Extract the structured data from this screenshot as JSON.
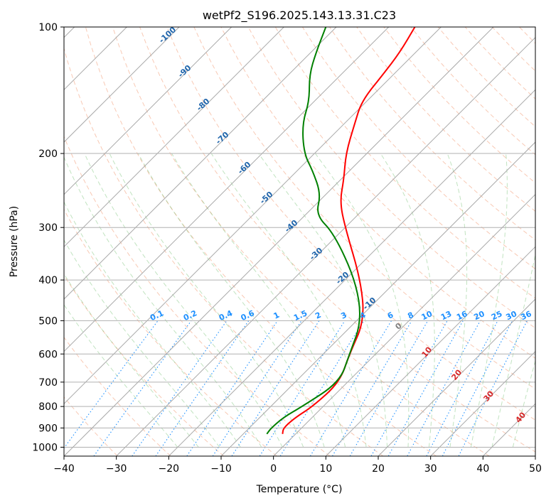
{
  "chart_data": {
    "type": "skew-t",
    "title": "wetPf2_S196.2025.143.13.31.C23",
    "xlabel": "Temperature (°C)",
    "ylabel": "Pressure (hPa)",
    "xlim": [
      -40,
      50
    ],
    "ylim": [
      1050,
      100
    ],
    "x_ticks": [
      "−40",
      "−30",
      "−20",
      "−10",
      "0",
      "10",
      "20",
      "30",
      "40",
      "50"
    ],
    "y_ticks": [
      {
        "p": 100,
        "label": "100"
      },
      {
        "p": 200,
        "label": "200"
      },
      {
        "p": 300,
        "label": "300"
      },
      {
        "p": 400,
        "label": "400"
      },
      {
        "p": 500,
        "label": "500"
      },
      {
        "p": 600,
        "label": "600"
      },
      {
        "p": 700,
        "label": "700"
      },
      {
        "p": 800,
        "label": "800"
      },
      {
        "p": 900,
        "label": "900"
      },
      {
        "p": 1000,
        "label": "1000"
      }
    ],
    "grid": true,
    "dry_adiabat_labels": [
      "-100",
      "-90",
      "-80",
      "-70",
      "-60",
      "-50",
      "-40",
      "-30",
      "-20",
      "-10",
      "0"
    ],
    "mixing_ratio_labels": [
      "0.1",
      "0.2",
      "0.4",
      "0.6",
      "1",
      "1.5",
      "2",
      "3",
      "4",
      "6",
      "8",
      "10",
      "13",
      "16",
      "20",
      "25",
      "30",
      "36"
    ],
    "moist_adiabat_labels": [
      "10",
      "20",
      "30",
      "40"
    ],
    "series": [
      {
        "role": "temperature",
        "color": "#ff0000",
        "points": [
          [
            930,
            -2.5
          ],
          [
            900,
            -3.5
          ],
          [
            850,
            -3.2
          ],
          [
            800,
            -2.0
          ],
          [
            700,
            -1.5
          ],
          [
            600,
            -5.0
          ],
          [
            500,
            -8.5
          ],
          [
            400,
            -17.0
          ],
          [
            300,
            -30.0
          ],
          [
            260,
            -36.0
          ],
          [
            230,
            -39.5
          ],
          [
            200,
            -44.0
          ],
          [
            170,
            -48.0
          ],
          [
            150,
            -51.0
          ],
          [
            130,
            -52.0
          ],
          [
            115,
            -53.0
          ],
          [
            100,
            -55.0
          ]
        ]
      },
      {
        "role": "dewpoint",
        "color": "#008000",
        "points": [
          [
            930,
            -5.5
          ],
          [
            900,
            -5.8
          ],
          [
            850,
            -5.5
          ],
          [
            800,
            -4.0
          ],
          [
            700,
            -1.5
          ],
          [
            600,
            -5.0
          ],
          [
            500,
            -9.0
          ],
          [
            400,
            -18.0
          ],
          [
            310,
            -31.0
          ],
          [
            280,
            -38.0
          ],
          [
            250,
            -41.0
          ],
          [
            220,
            -47.0
          ],
          [
            200,
            -52.0
          ],
          [
            170,
            -58.0
          ],
          [
            150,
            -61.0
          ],
          [
            130,
            -66.0
          ],
          [
            115,
            -69.0
          ],
          [
            100,
            -72.0
          ]
        ]
      }
    ]
  }
}
